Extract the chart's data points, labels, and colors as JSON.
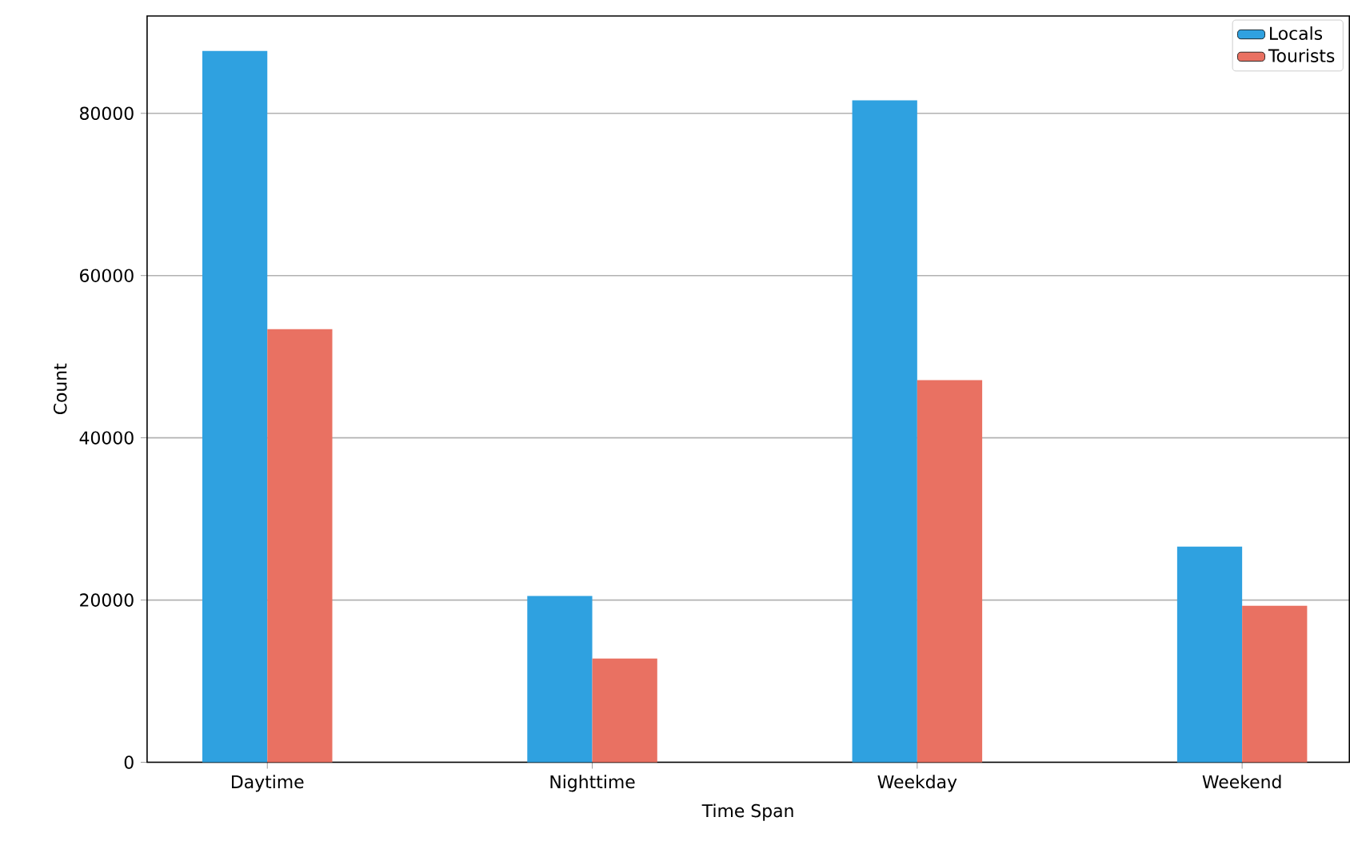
{
  "chart_data": {
    "type": "bar",
    "xlabel": "Time Span",
    "ylabel": "Count",
    "categories": [
      "Daytime",
      "Nighttime",
      "Weekday",
      "Weekend"
    ],
    "series": [
      {
        "name": "Locals",
        "color": "#2fa1e0",
        "values": [
          87700,
          20500,
          81600,
          26600
        ]
      },
      {
        "name": "Tourists",
        "color": "#e97162",
        "values": [
          53400,
          12800,
          47100,
          19300
        ]
      }
    ],
    "ylim": [
      0,
      92000
    ],
    "yticks": [
      0,
      20000,
      40000,
      60000,
      80000
    ],
    "grid": "y",
    "legend": "top right"
  }
}
